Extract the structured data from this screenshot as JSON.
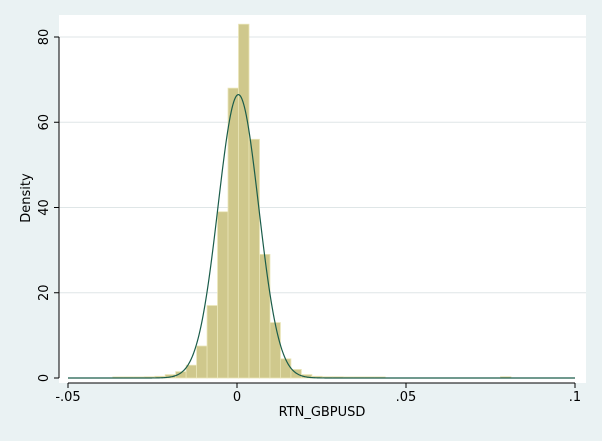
{
  "chart_data": {
    "type": "bar",
    "xlabel": "RTN_GBPUSD",
    "ylabel": "Density",
    "xlim": [
      -0.05,
      0.1
    ],
    "ylim": [
      0,
      80
    ],
    "x_ticks": [
      {
        "value": -0.05,
        "label": "-.05"
      },
      {
        "value": 0,
        "label": "0"
      },
      {
        "value": 0.05,
        "label": ".05"
      },
      {
        "value": 0.1,
        "label": ".1"
      }
    ],
    "y_ticks": [
      {
        "value": 0,
        "label": "0"
      },
      {
        "value": 20,
        "label": "20"
      },
      {
        "value": 40,
        "label": "40"
      },
      {
        "value": 60,
        "label": "60"
      },
      {
        "value": 80,
        "label": "80"
      }
    ],
    "grid": true,
    "legend": "none",
    "bin_width": 0.0031,
    "bins": [
      {
        "x": -0.0352,
        "density": 0.25
      },
      {
        "x": -0.0321,
        "density": 0.25
      },
      {
        "x": -0.029,
        "density": 0.25
      },
      {
        "x": -0.0259,
        "density": 0.3
      },
      {
        "x": -0.0228,
        "density": 0.4
      },
      {
        "x": -0.0197,
        "density": 0.8
      },
      {
        "x": -0.0166,
        "density": 1.5
      },
      {
        "x": -0.0135,
        "density": 3
      },
      {
        "x": -0.0104,
        "density": 7.5
      },
      {
        "x": -0.0073,
        "density": 17
      },
      {
        "x": -0.0042,
        "density": 39
      },
      {
        "x": -0.0011,
        "density": 68
      },
      {
        "x": 0.002,
        "density": 83
      },
      {
        "x": 0.0051,
        "density": 56
      },
      {
        "x": 0.0082,
        "density": 29
      },
      {
        "x": 0.0113,
        "density": 13
      },
      {
        "x": 0.0144,
        "density": 4.5
      },
      {
        "x": 0.0175,
        "density": 2
      },
      {
        "x": 0.0206,
        "density": 0.8
      },
      {
        "x": 0.0237,
        "density": 0.4
      },
      {
        "x": 0.0268,
        "density": 0.3
      },
      {
        "x": 0.0299,
        "density": 0.3
      },
      {
        "x": 0.033,
        "density": 0.25
      },
      {
        "x": 0.0361,
        "density": 0.25
      },
      {
        "x": 0.0392,
        "density": 0.25
      },
      {
        "x": 0.0423,
        "density": 0.25
      },
      {
        "x": 0.0795,
        "density": 0.3
      }
    ],
    "normal_curve": {
      "mean": 0.0004,
      "sd": 0.006
    },
    "colors": {
      "bar_fill": "#cfc88c",
      "bar_stroke": "#e9e4b6",
      "curve": "#1a5c4a",
      "grid": "#dfe6e7",
      "plot_bg": "#ffffff",
      "outer_bg": "#eaf2f3",
      "axis": "#000000"
    }
  }
}
